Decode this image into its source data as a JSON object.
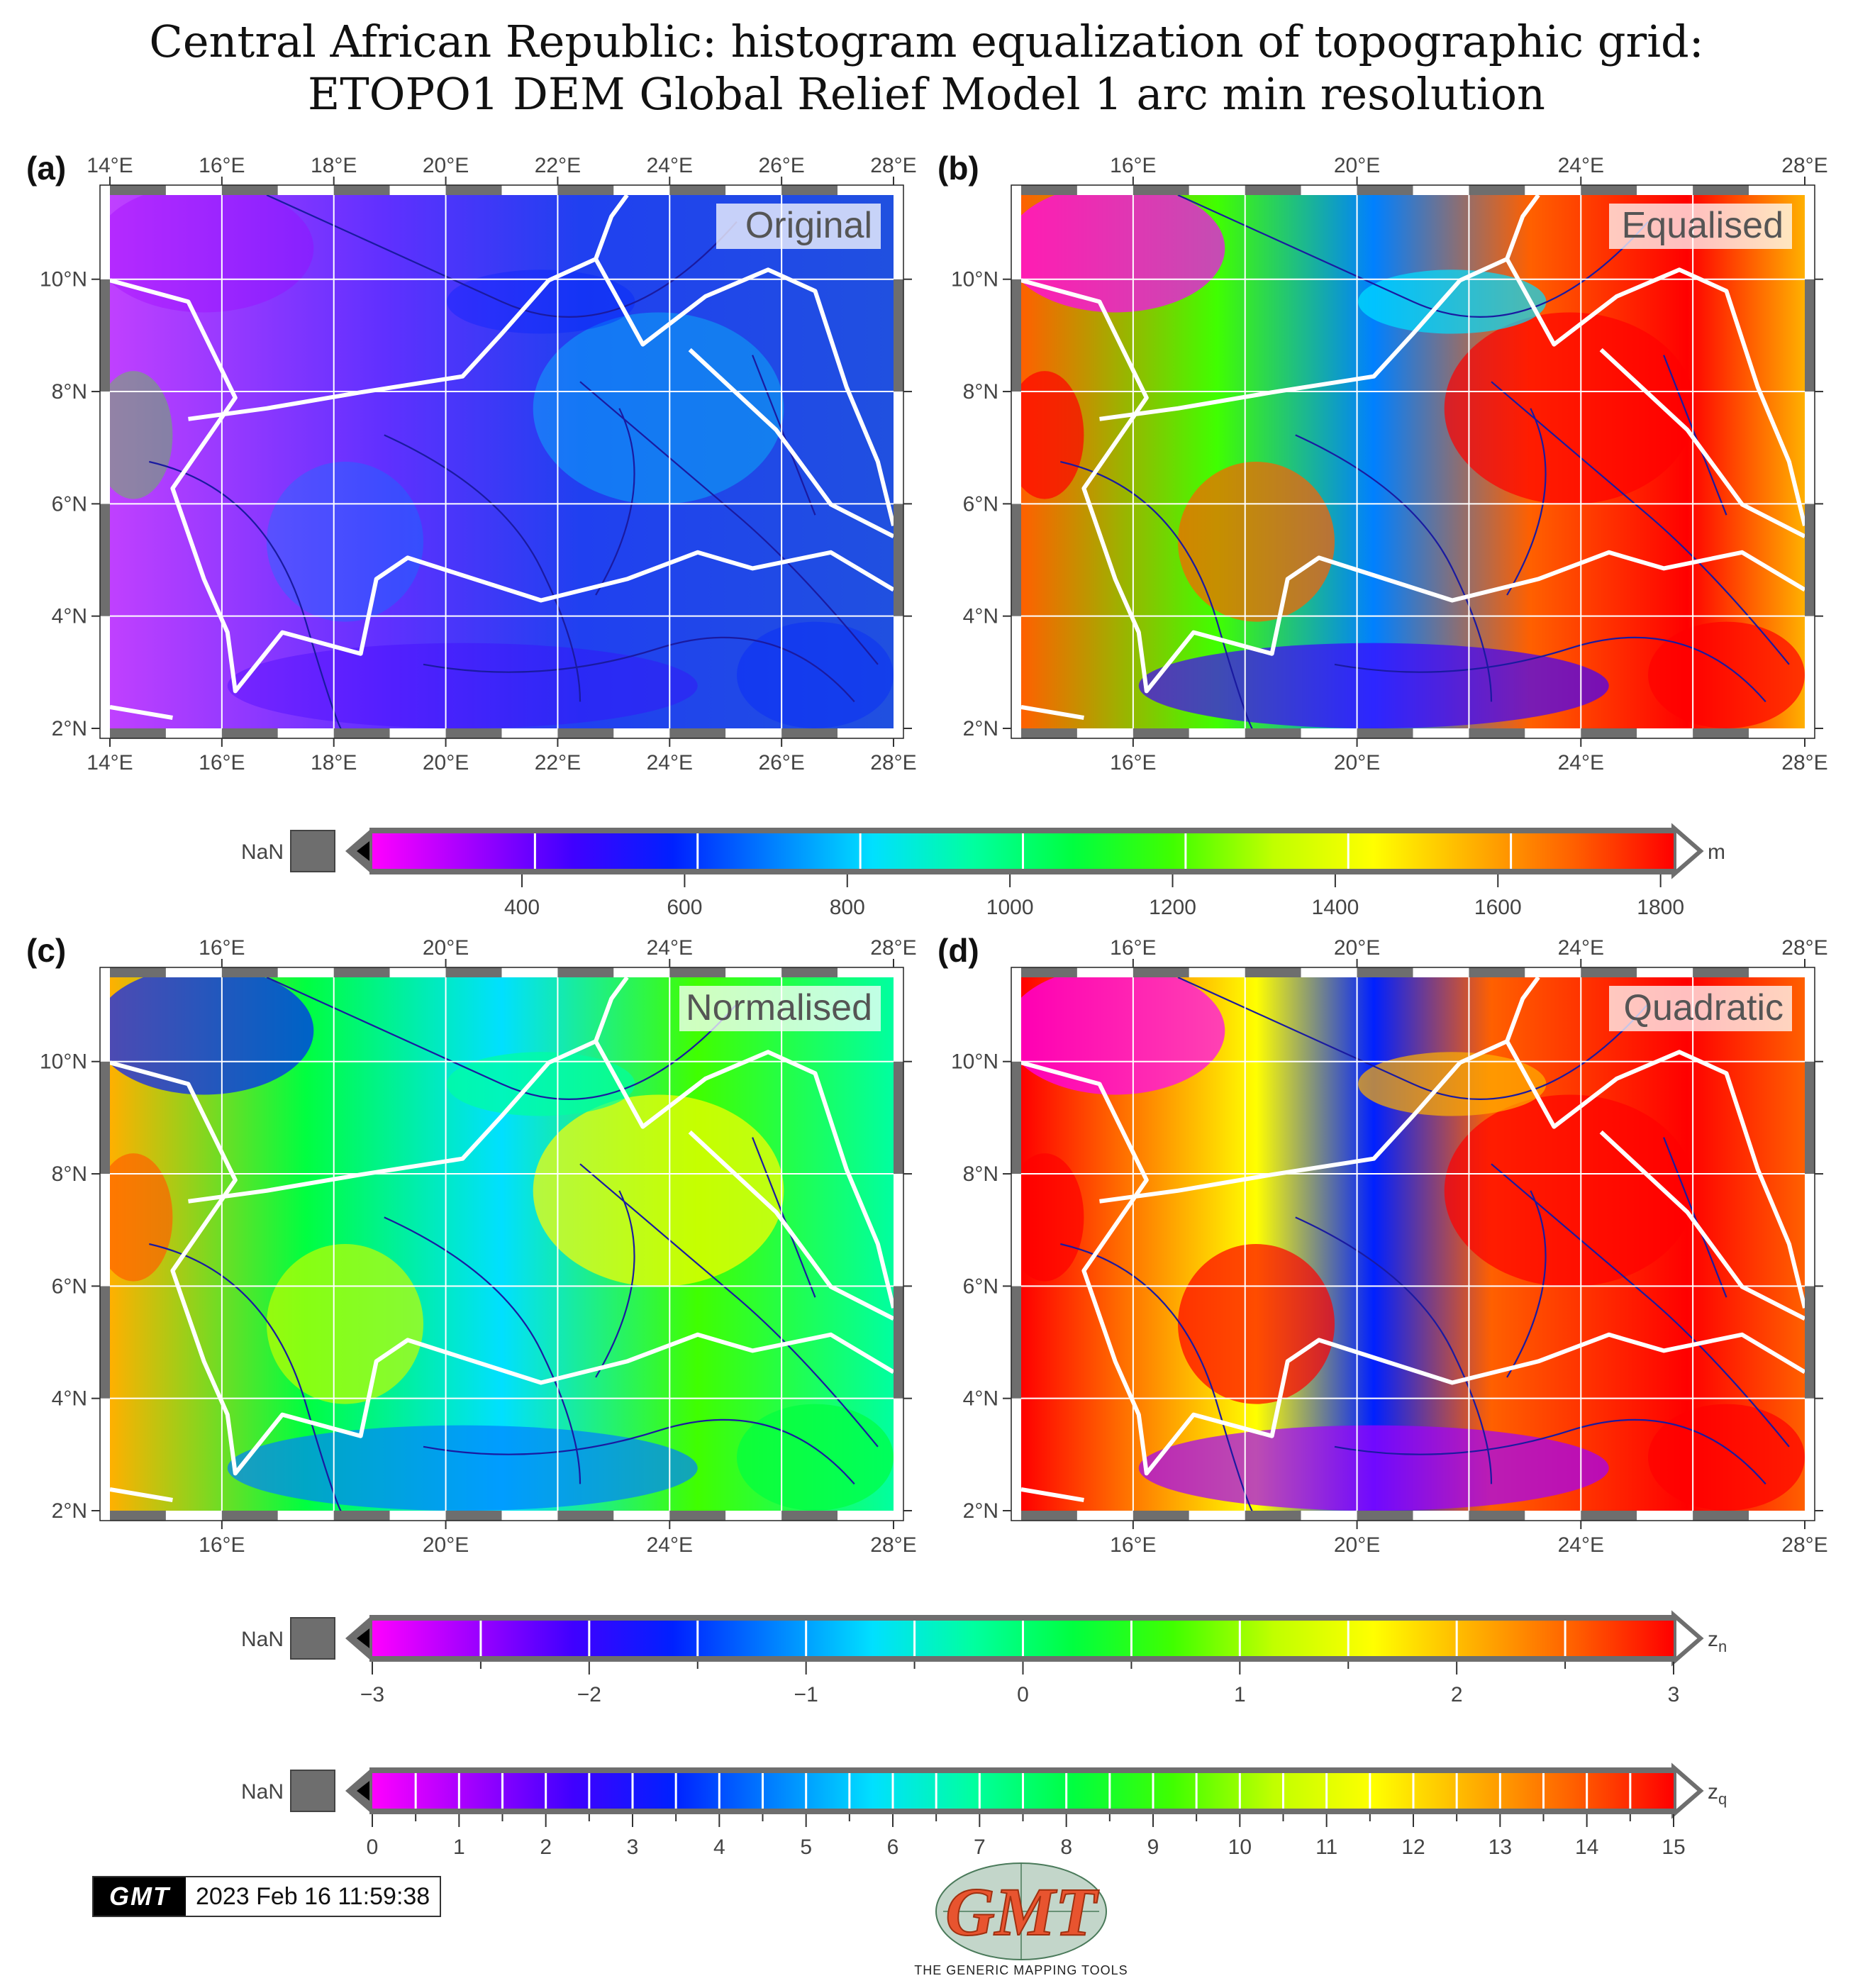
{
  "title": {
    "line1": "Central African Republic: histogram equalization of topographic grid:",
    "line2": "ETOPO1 DEM Global Relief Model 1 arc min resolution"
  },
  "panels": [
    {
      "label": "(a)",
      "name": "Original",
      "lon_ticks": [
        "14°E",
        "16°E",
        "18°E",
        "20°E",
        "22°E",
        "24°E",
        "26°E",
        "28°E"
      ]
    },
    {
      "label": "(b)",
      "name": "Equalised",
      "lon_ticks": [
        "16°E",
        "20°E",
        "24°E",
        "28°E"
      ]
    },
    {
      "label": "(c)",
      "name": "Normalised",
      "lon_ticks": [
        "16°E",
        "20°E",
        "24°E",
        "28°E"
      ]
    },
    {
      "label": "(d)",
      "name": "Quadratic",
      "lon_ticks": [
        "16°E",
        "20°E",
        "24°E",
        "28°E"
      ]
    }
  ],
  "lat_ticks": [
    "10°N",
    "8°N",
    "6°N",
    "4°N",
    "2°N"
  ],
  "colorbars": [
    {
      "nan_label": "NaN",
      "unit": "m",
      "ticks": [
        "400",
        "600",
        "800",
        "1000",
        "1200",
        "1400",
        "1600",
        "1800"
      ]
    },
    {
      "nan_label": "NaN",
      "unit": "z",
      "unit_sub": "n",
      "ticks": [
        "−3",
        "−2",
        "−1",
        "0",
        "1",
        "2",
        "3"
      ]
    },
    {
      "nan_label": "NaN",
      "unit": "z",
      "unit_sub": "q",
      "ticks": [
        "0",
        "1",
        "2",
        "3",
        "4",
        "5",
        "6",
        "7",
        "8",
        "9",
        "10",
        "11",
        "12",
        "13",
        "14",
        "15"
      ]
    }
  ],
  "colors": {
    "palette": [
      "#ff00ff",
      "#a000ff",
      "#4000ff",
      "#0020ff",
      "#0080ff",
      "#00e0ff",
      "#00ffa0",
      "#00ff40",
      "#40ff00",
      "#c0ff00",
      "#ffff00",
      "#ffb000",
      "#ff6000",
      "#ff0000"
    ],
    "border": "#ffffff",
    "rivers": "#1a1aa0",
    "frame": "#6e6e6e"
  },
  "timestamp": {
    "logo": "GMT",
    "text": "2023 Feb 16 11:59:38"
  },
  "gmt_logo": {
    "text": "GMT",
    "tagline": "THE GENERIC MAPPING TOOLS"
  }
}
